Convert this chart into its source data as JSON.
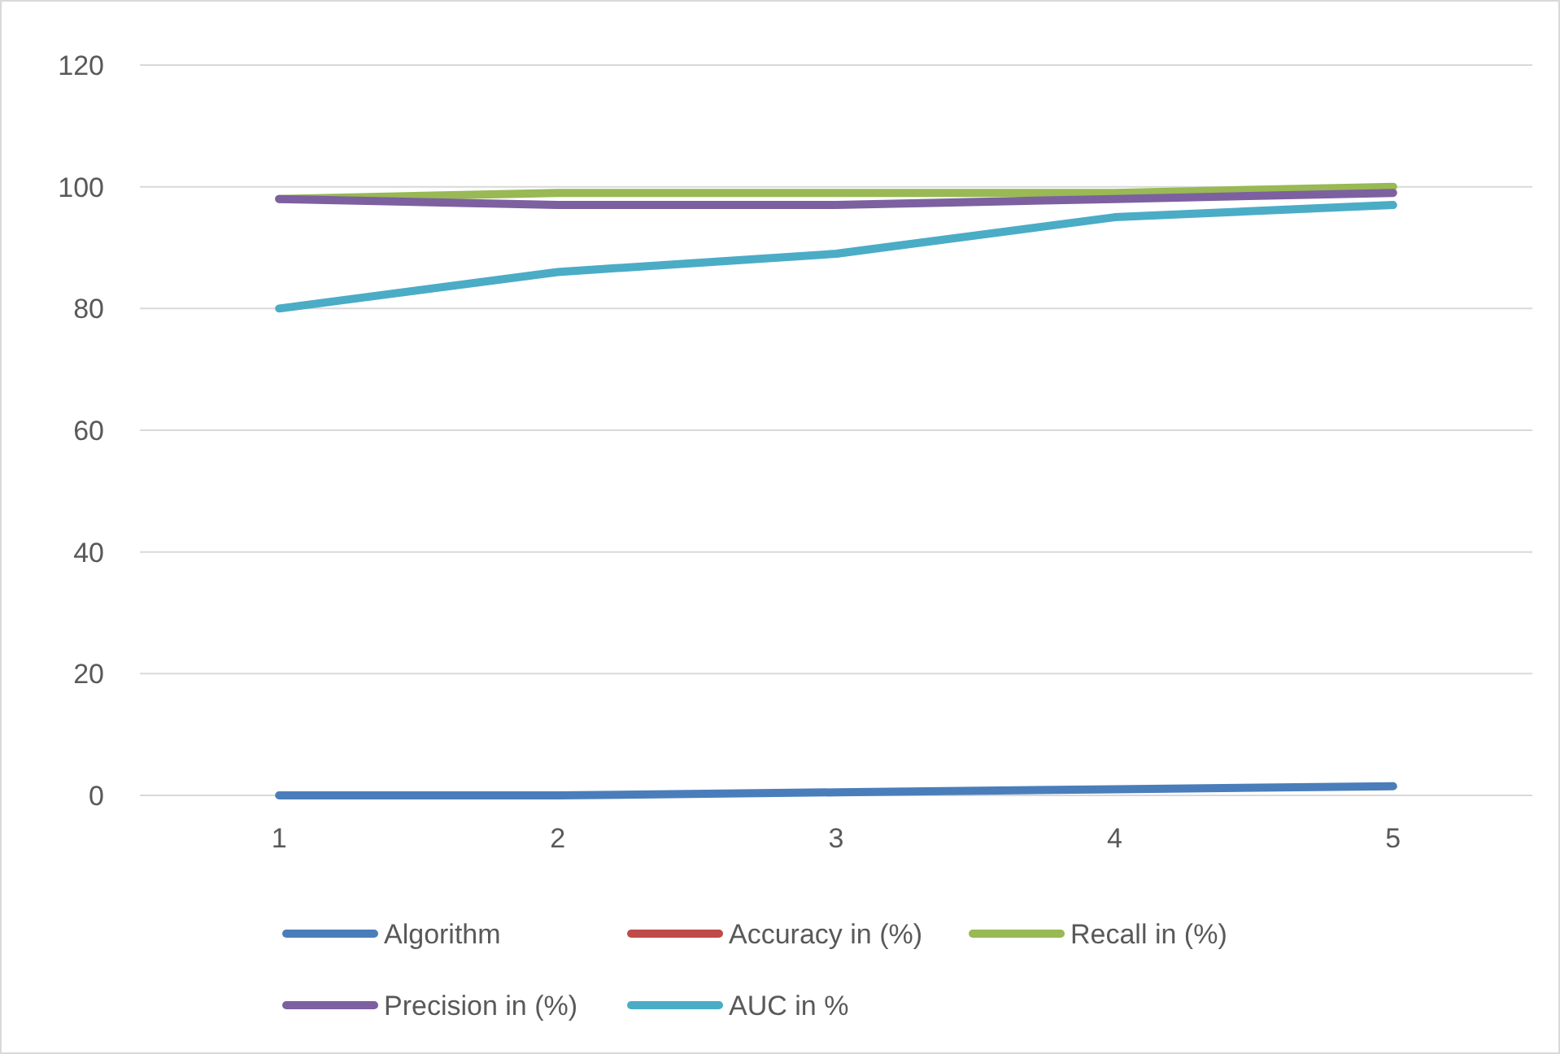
{
  "chart_data": {
    "type": "line",
    "categories": [
      "1",
      "2",
      "3",
      "4",
      "5"
    ],
    "ylim": [
      0,
      120
    ],
    "yticks": [
      0,
      20,
      40,
      60,
      80,
      100,
      120
    ],
    "grid": "y",
    "legend": "bottom",
    "series": [
      {
        "name": "Algorithm",
        "color": "#4a7ebb",
        "values": [
          0,
          0,
          0.5,
          1,
          1.5
        ]
      },
      {
        "name": "Accuracy in (%)",
        "color": "#be4b48",
        "values": [
          null,
          null,
          null,
          null,
          null
        ]
      },
      {
        "name": "Recall in (%)",
        "color": "#98b954",
        "values": [
          98,
          99,
          99,
          99,
          100
        ]
      },
      {
        "name": "Precision in (%)",
        "color": "#7d60a0",
        "values": [
          98,
          97,
          97,
          98,
          99
        ]
      },
      {
        "name": "AUC in %",
        "color": "#4bacc6",
        "values": [
          80,
          86,
          89,
          95,
          97
        ]
      }
    ]
  }
}
